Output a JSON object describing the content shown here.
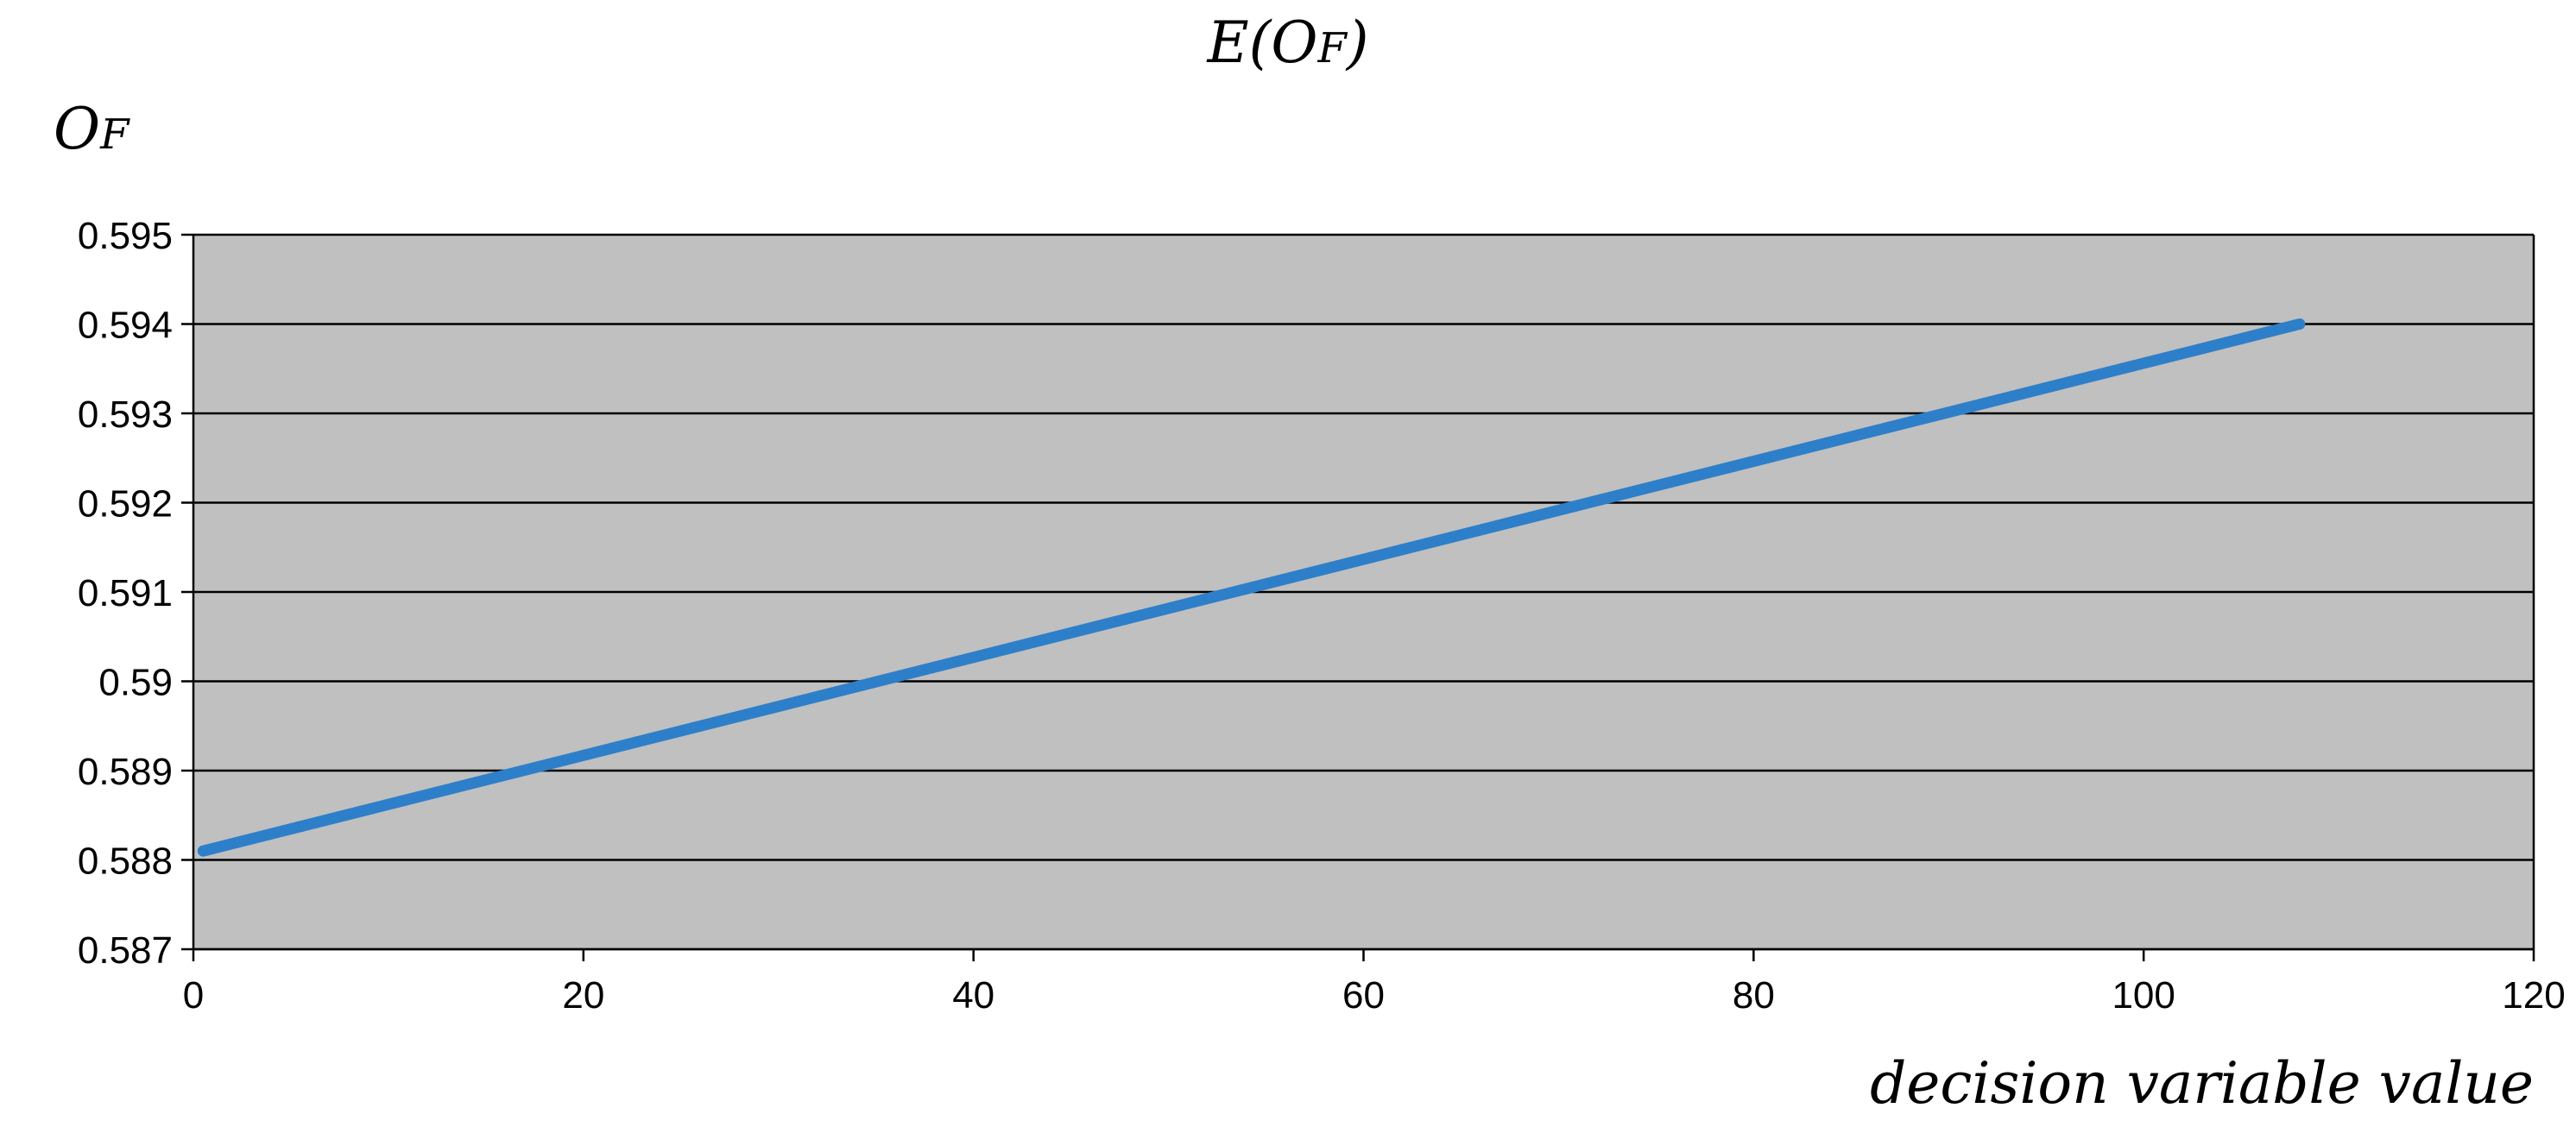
{
  "chart_data": {
    "type": "line",
    "title": "E(OF)",
    "title_main": "E(O",
    "title_sub": "F",
    "title_close": ")",
    "ylabel": "OF",
    "ylabel_main": "O",
    "ylabel_sub": "F",
    "xlabel": "decision variable value",
    "xlim": [
      0,
      120
    ],
    "ylim": [
      0.587,
      0.595
    ],
    "xticks": [
      0,
      20,
      40,
      60,
      80,
      100,
      120
    ],
    "yticks": [
      0.587,
      0.588,
      0.589,
      0.59,
      0.591,
      0.592,
      0.593,
      0.594,
      0.595
    ],
    "xtick_labels": [
      "0",
      "20",
      "40",
      "60",
      "80",
      "100",
      "120"
    ],
    "ytick_labels": [
      "0.587",
      "0.588",
      "0.589",
      "0.59",
      "0.591",
      "0.592",
      "0.593",
      "0.594",
      "0.595"
    ],
    "grid": true,
    "plot_background": "#c0c0c0",
    "gridline_color": "#000000",
    "series": [
      {
        "color": "#2e7fc9",
        "x": [
          0.5,
          108
        ],
        "y": [
          0.5881,
          0.594
        ]
      }
    ]
  }
}
